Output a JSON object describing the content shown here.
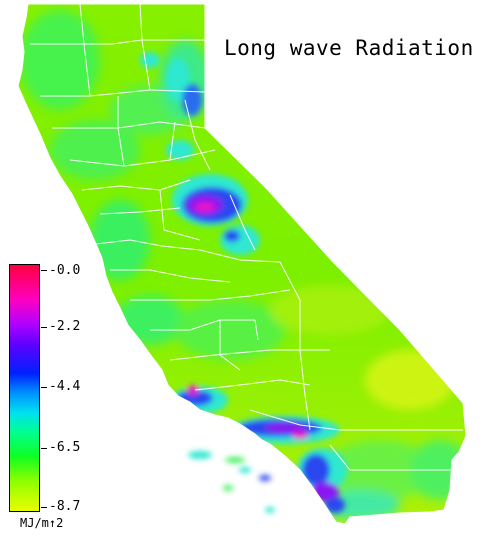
{
  "title": "Long wave Radiation",
  "legend": {
    "unit": "MJ/m↑2",
    "ticks": [
      "-0.0",
      "-2.2",
      "-4.4",
      "-6.5",
      "-8.7"
    ]
  },
  "colors": {
    "land_base": "#7ff200",
    "coast_green": "#3cf25a",
    "cyan": "#2fe8d0",
    "blue": "#2c46f0",
    "purple": "#8a18f0",
    "magenta": "#e818c8",
    "yellow": "#d8f418",
    "boundary": "#ffffff"
  }
}
